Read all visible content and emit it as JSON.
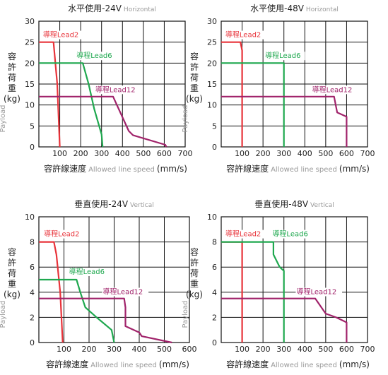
{
  "chart_data": [
    {
      "type": "line",
      "title": "水平使用-24V",
      "subtitle": "Horizontal",
      "xlabel": "容許線速度",
      "xlabel_en": "Allowed line speed",
      "xunit": "(mm/s)",
      "ylabel": "容許荷重",
      "ylabel_unit": "(kg)",
      "ylabel_en": "Payload",
      "xlim": [
        0,
        700
      ],
      "ylim": [
        0,
        30
      ],
      "xticks": [
        100,
        200,
        300,
        400,
        500,
        600,
        700
      ],
      "yticks": [
        0,
        5,
        10,
        15,
        20,
        25,
        30
      ],
      "grid": true,
      "series": [
        {
          "name": "導程Lead2",
          "color": "#e8333a",
          "x": [
            0,
            70,
            88,
            100
          ],
          "y": [
            25,
            25,
            15,
            0
          ],
          "label_at": [
            20,
            26.2
          ]
        },
        {
          "name": "導程Lead6",
          "color": "#1fa84f",
          "x": [
            0,
            210,
            238,
            265,
            300,
            305
          ],
          "y": [
            20,
            20,
            15,
            9,
            3,
            0
          ],
          "label_at": [
            180,
            21.2
          ]
        },
        {
          "name": "導程Lead12",
          "color": "#a0226a",
          "x": [
            0,
            355,
            430,
            450,
            605,
            610
          ],
          "y": [
            12,
            12,
            3.8,
            2.8,
            0.5,
            0
          ],
          "label_at": [
            270,
            13.1
          ]
        }
      ]
    },
    {
      "type": "line",
      "title": "水平使用-48V",
      "subtitle": "Horizontal",
      "xlabel": "容許線速度",
      "xlabel_en": "Allowed line speed",
      "xunit": "(mm/s)",
      "ylabel": "容許荷重",
      "ylabel_unit": "(kg)",
      "ylabel_en": "Payload",
      "xlim": [
        0,
        700
      ],
      "ylim": [
        0,
        30
      ],
      "xticks": [
        100,
        200,
        300,
        400,
        500,
        600,
        700
      ],
      "yticks": [
        0,
        5,
        10,
        15,
        20,
        25,
        30
      ],
      "grid": true,
      "series": [
        {
          "name": "導程Lead2",
          "color": "#e8333a",
          "x": [
            0,
            92,
            100,
            100
          ],
          "y": [
            25,
            25,
            23,
            0
          ],
          "label_at": [
            20,
            26.2
          ]
        },
        {
          "name": "導程Lead6",
          "color": "#1fa84f",
          "x": [
            0,
            300,
            300
          ],
          "y": [
            20,
            20,
            0
          ],
          "label_at": [
            210,
            21.2
          ]
        },
        {
          "name": "導程Lead12",
          "color": "#a0226a",
          "x": [
            0,
            540,
            555,
            600,
            600
          ],
          "y": [
            12,
            12,
            8.2,
            7.2,
            0
          ],
          "label_at": [
            435,
            13.1
          ]
        }
      ]
    },
    {
      "type": "line",
      "title": "垂直使用-24V",
      "subtitle": "Vertical",
      "xlabel": "容許線速度",
      "xlabel_en": "Allowed line speed",
      "xunit": "(mm/s)",
      "ylabel": "容許荷重",
      "ylabel_unit": "(kg)",
      "ylabel_en": "Payload",
      "xlim": [
        0,
        600
      ],
      "ylim": [
        0,
        10
      ],
      "xticks": [
        100,
        200,
        300,
        400,
        500,
        600
      ],
      "yticks": [
        0,
        2,
        4,
        6,
        8,
        10
      ],
      "grid": true,
      "series": [
        {
          "name": "導程Lead2",
          "color": "#e8333a",
          "x": [
            0,
            60,
            70,
            85,
            95
          ],
          "y": [
            8,
            8,
            7,
            4,
            0
          ],
          "label_at": [
            20,
            8.45
          ]
        },
        {
          "name": "導程Lead6",
          "color": "#1fa84f",
          "x": [
            0,
            150,
            165,
            185,
            230,
            290,
            300
          ],
          "y": [
            5,
            5,
            4,
            2.8,
            2,
            1,
            0
          ],
          "label_at": [
            120,
            5.45
          ]
        },
        {
          "name": "導程Lead12",
          "color": "#a0226a",
          "x": [
            0,
            340,
            345,
            345,
            400,
            410,
            530
          ],
          "y": [
            3.5,
            3.5,
            2.8,
            1.3,
            0.8,
            0.5,
            0
          ],
          "label_at": [
            255,
            3.85
          ]
        }
      ]
    },
    {
      "type": "line",
      "title": "垂直使用-48V",
      "subtitle": "Vertical",
      "xlabel": "容許線速度",
      "xlabel_en": "Allowed line speed",
      "xunit": "(mm/s)",
      "ylabel": "容許荷重",
      "ylabel_unit": "(kg)",
      "ylabel_en": "Payload",
      "xlim": [
        0,
        700
      ],
      "ylim": [
        0,
        10
      ],
      "xticks": [
        100,
        200,
        300,
        400,
        500,
        600,
        700
      ],
      "yticks": [
        0,
        2,
        4,
        6,
        8,
        10
      ],
      "grid": true,
      "series": [
        {
          "name": "導程Lead2",
          "color": "#e8333a",
          "x": [
            0,
            100,
            100
          ],
          "y": [
            8,
            8,
            0
          ],
          "label_at": [
            20,
            8.45
          ]
        },
        {
          "name": "導程Lead6",
          "color": "#1fa84f",
          "x": [
            0,
            250,
            250,
            280,
            300,
            300
          ],
          "y": [
            8,
            8,
            7,
            6,
            5.7,
            0
          ],
          "label_at": [
            245,
            8.45
          ]
        },
        {
          "name": "導程Lead12",
          "color": "#a0226a",
          "x": [
            0,
            450,
            500,
            550,
            600,
            600
          ],
          "y": [
            3.5,
            3.5,
            2.3,
            2,
            1.6,
            0
          ],
          "label_at": [
            360,
            3.85
          ]
        }
      ]
    }
  ]
}
